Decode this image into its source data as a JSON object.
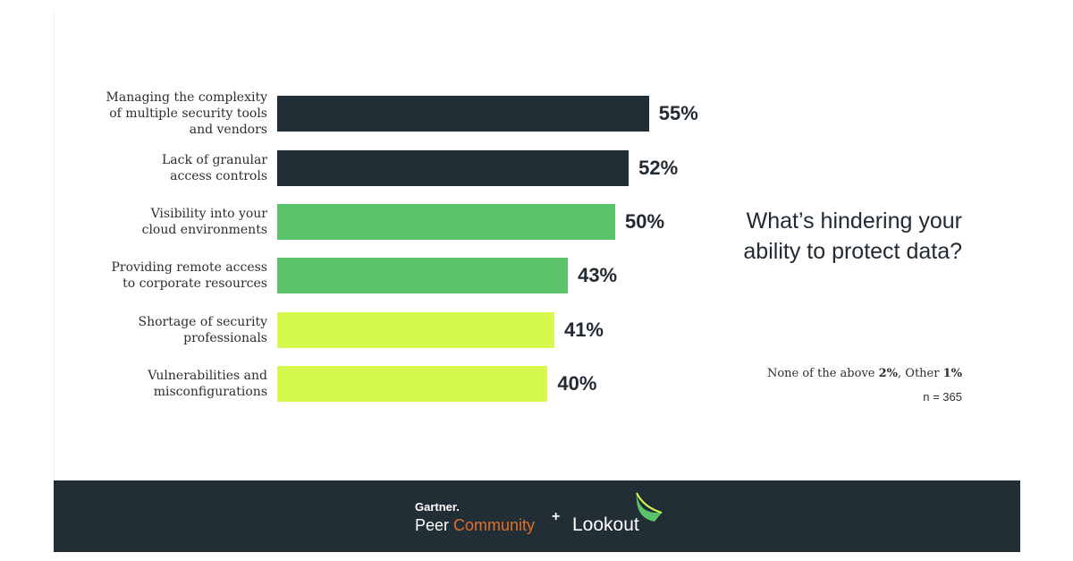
{
  "chart_data": {
    "type": "bar",
    "orientation": "horizontal",
    "title": "What’s hindering your ability to protect data?",
    "categories": [
      "Managing the complexity of multiple security tools and vendors",
      "Lack of granular access controls",
      "Visibility into your cloud environments",
      "Providing remote access to corporate resources",
      "Shortage of security professionals",
      "Vulnerabilities and misconfigurations"
    ],
    "label_lines": [
      [
        "Managing the complexity",
        "of multiple security tools",
        "and vendors"
      ],
      [
        "Lack of granular",
        "access controls"
      ],
      [
        "Visibility into your",
        "cloud environments"
      ],
      [
        "Providing remote access",
        "to corporate resources"
      ],
      [
        "Shortage of security",
        "professionals"
      ],
      [
        "Vulnerabilities and",
        "misconfigurations"
      ]
    ],
    "values": [
      55,
      52,
      50,
      43,
      41,
      40
    ],
    "value_labels": [
      "55%",
      "52%",
      "50%",
      "43%",
      "41%",
      "40%"
    ],
    "colors": [
      "#222e36",
      "#222e36",
      "#5bc46a",
      "#5bc46a",
      "#d5f94f",
      "#d5f94f"
    ],
    "grid": false,
    "axis_visible": false
  },
  "notes": {
    "none_prefix": "None of the above ",
    "none_value": "2%",
    "other_prefix": ", Other ",
    "other_value": "1%",
    "sample": "n = 365"
  },
  "footer": {
    "gartner": "Gartner.",
    "peer": "Peer ",
    "community": "Community",
    "plus": "+",
    "lookout": "Lookout",
    "background": "#222e36",
    "accent": "#e0702a"
  }
}
